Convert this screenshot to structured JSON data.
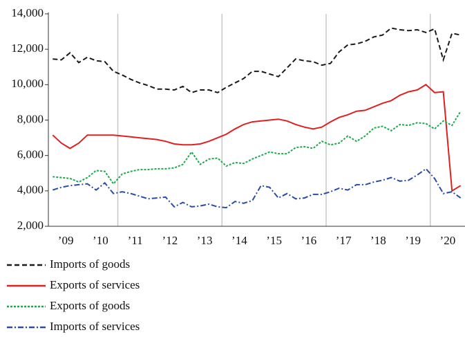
{
  "chart_data": {
    "type": "line",
    "x": [
      2009.125,
      2009.375,
      2009.625,
      2009.875,
      2010.125,
      2010.375,
      2010.625,
      2010.875,
      2011.125,
      2011.375,
      2011.625,
      2011.875,
      2012.125,
      2012.375,
      2012.625,
      2012.875,
      2013.125,
      2013.375,
      2013.625,
      2013.875,
      2014.125,
      2014.375,
      2014.625,
      2014.875,
      2015.125,
      2015.375,
      2015.625,
      2015.875,
      2016.125,
      2016.375,
      2016.625,
      2016.875,
      2017.125,
      2017.375,
      2017.625,
      2017.875,
      2018.125,
      2018.375,
      2018.625,
      2018.875,
      2019.125,
      2019.375,
      2019.625,
      2019.875,
      2020.125,
      2020.375,
      2020.625,
      2020.875
    ],
    "series": [
      {
        "name": "Imports of goods",
        "color": "#1a1a1a",
        "dash": "7 4",
        "values": [
          11450,
          11400,
          11800,
          11250,
          11550,
          11350,
          11300,
          10750,
          10550,
          10300,
          10100,
          9950,
          9750,
          9750,
          9700,
          9900,
          9550,
          9700,
          9700,
          9550,
          9850,
          10100,
          10350,
          10750,
          10750,
          10600,
          10450,
          10950,
          11450,
          11350,
          11300,
          11100,
          11200,
          11850,
          12250,
          12300,
          12450,
          12700,
          12800,
          13200,
          13100,
          13050,
          13100,
          12950,
          13150,
          11400,
          12900,
          12800
        ]
      },
      {
        "name": "Exports of services",
        "color": "#e02020",
        "dash": "",
        "values": [
          7150,
          6700,
          6400,
          6700,
          7150,
          7150,
          7150,
          7150,
          7100,
          7050,
          7000,
          6950,
          6900,
          6800,
          6650,
          6600,
          6600,
          6650,
          6800,
          7000,
          7200,
          7500,
          7750,
          7900,
          7950,
          8000,
          8050,
          7950,
          7750,
          7600,
          7500,
          7600,
          7900,
          8150,
          8300,
          8500,
          8550,
          8750,
          8950,
          9100,
          9400,
          9600,
          9700,
          10000,
          9550,
          9600,
          4000,
          4300
        ]
      },
      {
        "name": "Exports of goods",
        "color": "#1aaa4a",
        "dash": "3 2",
        "values": [
          4800,
          4750,
          4700,
          4500,
          4750,
          5150,
          5100,
          4400,
          4950,
          5100,
          5200,
          5200,
          5250,
          5250,
          5300,
          5500,
          6200,
          5500,
          5800,
          5850,
          5400,
          5600,
          5550,
          5800,
          6000,
          6200,
          6100,
          6100,
          6450,
          6500,
          6400,
          6800,
          6600,
          6700,
          7100,
          6800,
          7100,
          7550,
          7650,
          7400,
          7750,
          7700,
          7850,
          7800,
          7500,
          7950,
          7700,
          8500
        ]
      },
      {
        "name": "Imports of services",
        "color": "#2a4aa8",
        "dash": "8 3 2 3",
        "values": [
          4050,
          4200,
          4300,
          4350,
          4400,
          4050,
          4450,
          3850,
          3950,
          3850,
          3700,
          3550,
          3600,
          3650,
          3100,
          3350,
          3100,
          3150,
          3250,
          3100,
          3050,
          3400,
          3300,
          3450,
          4300,
          4200,
          3600,
          3850,
          3550,
          3600,
          3800,
          3800,
          3950,
          4150,
          4050,
          4350,
          4350,
          4500,
          4600,
          4750,
          4550,
          4600,
          4900,
          5250,
          4700,
          3850,
          3950,
          3600
        ]
      }
    ],
    "xlim": [
      2009,
      2021
    ],
    "xticks": [
      {
        "value": 2009.5,
        "label": "’09"
      },
      {
        "value": 2010.5,
        "label": "’10"
      },
      {
        "value": 2011.5,
        "label": "’11"
      },
      {
        "value": 2012.5,
        "label": "’12"
      },
      {
        "value": 2013.5,
        "label": "’13"
      },
      {
        "value": 2014.5,
        "label": "’14"
      },
      {
        "value": 2015.5,
        "label": "’15"
      },
      {
        "value": 2016.5,
        "label": "’16"
      },
      {
        "value": 2017.5,
        "label": "’17"
      },
      {
        "value": 2018.5,
        "label": "’18"
      },
      {
        "value": 2019.5,
        "label": "’19"
      },
      {
        "value": 2020.5,
        "label": "’20"
      }
    ],
    "xgrid": [
      2011,
      2014,
      2017,
      2020
    ],
    "ylim": [
      2000,
      14000
    ],
    "yticks": [
      {
        "value": 2000,
        "label": "2,000"
      },
      {
        "value": 4000,
        "label": "4,000"
      },
      {
        "value": 6000,
        "label": "6,000"
      },
      {
        "value": 8000,
        "label": "8,000"
      },
      {
        "value": 10000,
        "label": "10,000"
      },
      {
        "value": 12000,
        "label": "12,000"
      },
      {
        "value": 14000,
        "label": "14,000"
      }
    ]
  }
}
